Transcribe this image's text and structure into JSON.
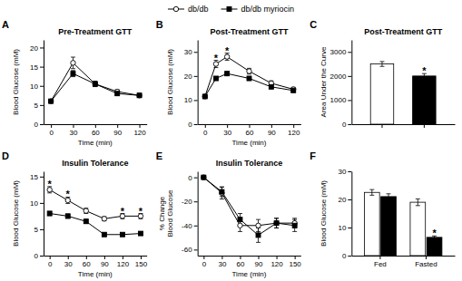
{
  "chart_data": [
    {
      "type": "line",
      "panel_label": "A",
      "title": "Pre-Treatment GTT",
      "xlabel": "Time (min)",
      "ylabel": "Blood Glucose (mM)",
      "x": [
        0,
        30,
        60,
        90,
        120
      ],
      "xlim": [
        -10,
        130
      ],
      "xticks": [
        0,
        30,
        60,
        90,
        120
      ],
      "ylim": [
        0,
        22
      ],
      "yticks": [
        0,
        5,
        10,
        15,
        20
      ],
      "legend": "top",
      "series": [
        {
          "name": "db/db",
          "color": "#ffffff",
          "marker": "circle",
          "values": [
            6.0,
            16.0,
            10.5,
            8.5,
            7.5
          ],
          "errors": [
            0.3,
            1.5,
            0.7,
            0.5,
            0.5
          ]
        },
        {
          "name": "db/db myriocin",
          "color": "#000000",
          "marker": "square",
          "values": [
            6.0,
            13.2,
            10.5,
            8.0,
            7.5
          ],
          "errors": [
            0.3,
            0.8,
            0.6,
            0.5,
            0.5
          ]
        }
      ]
    },
    {
      "type": "line",
      "panel_label": "B",
      "title": "Post-Treatment GTT",
      "xlabel": "Time (min)",
      "ylabel": "Blood Glucose (mM)",
      "x": [
        0,
        15,
        30,
        60,
        90,
        120
      ],
      "xlim": [
        -10,
        130
      ],
      "xticks": [
        0,
        30,
        60,
        90,
        120
      ],
      "ylim": [
        0,
        35
      ],
      "yticks": [
        0,
        10,
        20,
        30
      ],
      "series": [
        {
          "color": "#ffffff",
          "marker": "circle",
          "values": [
            11.5,
            25.0,
            28.0,
            22.0,
            17.0,
            14.5
          ],
          "errors": [
            0.5,
            1.5,
            1.5,
            1.2,
            1.0,
            0.8
          ]
        },
        {
          "color": "#000000",
          "marker": "square",
          "values": [
            11.5,
            19.0,
            21.0,
            19.0,
            15.5,
            14.0
          ],
          "errors": [
            0.5,
            0.8,
            0.8,
            0.8,
            0.7,
            0.6
          ]
        }
      ],
      "annotations": [
        {
          "text": "*",
          "series": 0,
          "index": 1
        },
        {
          "text": "*",
          "series": 0,
          "index": 2
        }
      ]
    },
    {
      "type": "bar",
      "panel_label": "C",
      "title": "Post-Treatment GTT",
      "ylabel": "Area Under the Curve",
      "categories": [
        null,
        null
      ],
      "values": [
        2500,
        2000
      ],
      "errors": [
        100,
        100
      ],
      "colors": [
        "#ffffff",
        "#000000"
      ],
      "ylim": [
        0,
        3500
      ],
      "yticks": [
        0,
        1000,
        2000,
        3000
      ],
      "annotations": [
        {
          "text": "*",
          "index": 1
        }
      ]
    },
    {
      "type": "line",
      "panel_label": "D",
      "title": "Insulin Tolerance",
      "xlabel": "Time (min)",
      "ylabel": "Blood Glucose (mM)",
      "x": [
        0,
        30,
        60,
        90,
        120,
        150
      ],
      "xlim": [
        -10,
        160
      ],
      "xticks": [
        0,
        30,
        60,
        90,
        120,
        150
      ],
      "ylim": [
        0,
        16
      ],
      "yticks": [
        0,
        5,
        10,
        15
      ],
      "series": [
        {
          "color": "#ffffff",
          "marker": "circle",
          "values": [
            12.5,
            10.5,
            8.5,
            7.0,
            7.5,
            7.5
          ],
          "errors": [
            0.6,
            0.6,
            0.5,
            0.4,
            0.5,
            0.5
          ]
        },
        {
          "color": "#000000",
          "marker": "square",
          "values": [
            8.0,
            7.5,
            6.5,
            4.0,
            4.0,
            4.2
          ],
          "errors": [
            0.4,
            0.4,
            0.4,
            0.3,
            0.3,
            0.3
          ]
        }
      ],
      "annotations": [
        {
          "text": "*",
          "series": 0,
          "index": 0
        },
        {
          "text": "*",
          "series": 0,
          "index": 1
        },
        {
          "text": "*",
          "series": 0,
          "index": 4
        },
        {
          "text": "*",
          "series": 0,
          "index": 5
        }
      ]
    },
    {
      "type": "line",
      "panel_label": "E",
      "title": "Insulin Tolerance",
      "xlabel": "Time (min)",
      "ylabel": "% Change\nBlood Glucose",
      "x": [
        0,
        30,
        60,
        90,
        120,
        150
      ],
      "xlim": [
        -10,
        160
      ],
      "xticks": [
        0,
        30,
        60,
        90,
        120,
        150
      ],
      "ylim": [
        -65,
        5
      ],
      "yticks": [
        0,
        -20,
        -40,
        -60
      ],
      "series": [
        {
          "color": "#ffffff",
          "marker": "circle",
          "values": [
            0,
            -13,
            -40,
            -40,
            -38,
            -38
          ],
          "errors": [
            0,
            5,
            5,
            5,
            4,
            4
          ]
        },
        {
          "color": "#000000",
          "marker": "square",
          "values": [
            0,
            -12,
            -35,
            -48,
            -38,
            -40
          ],
          "errors": [
            0,
            4,
            5,
            6,
            4,
            5
          ]
        }
      ]
    },
    {
      "type": "bar",
      "panel_label": "F",
      "ylabel": "Blood Glucose (mM)",
      "categories": [
        "Fed",
        "Fasted"
      ],
      "ylim": [
        0,
        30
      ],
      "yticks": [
        0,
        10,
        20,
        30
      ],
      "series": [
        {
          "color": "#ffffff",
          "values": [
            22.5,
            19.0
          ],
          "errors": [
            1.0,
            1.2
          ]
        },
        {
          "color": "#000000",
          "values": [
            21.0,
            6.5
          ],
          "errors": [
            1.0,
            0.5
          ]
        }
      ],
      "annotations": [
        {
          "text": "*",
          "series": 1,
          "index": 1
        }
      ]
    }
  ]
}
